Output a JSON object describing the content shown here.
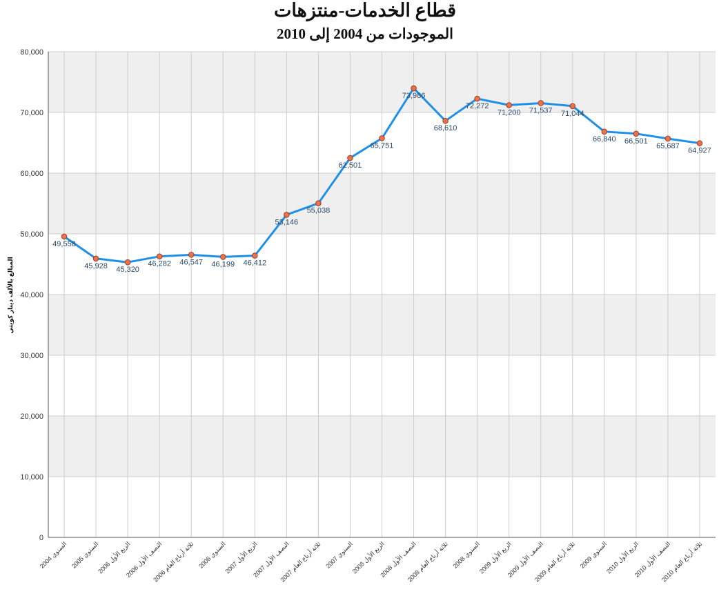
{
  "chart_data": {
    "type": "line",
    "title": "قطاع الخدمات-منتزهات",
    "subtitle": "الموجودات من 2004 إلى 2010",
    "ylabel": "المبالغ بالألف دينار كويتي",
    "xlabel": "",
    "ylim": [
      0,
      80000
    ],
    "yticks": [
      "0",
      "10,000",
      "20,000",
      "30,000",
      "40,000",
      "50,000",
      "60,000",
      "70,000",
      "80,000"
    ],
    "grid": true,
    "legend": "none",
    "colors": {
      "line": "#1e90e8",
      "marker_fill": "#e8734a",
      "marker_stroke": "#a0402a",
      "band": "#efefef",
      "grid": "#cccccc"
    },
    "categories": [
      "السنوي 2004",
      "السنوي 2005",
      "الربع الأول 2006",
      "النصف الأول 2006",
      "ثلاثة أرباع العام 2006",
      "السنوي 2006",
      "الربع الأول 2007",
      "النصف الأول 2007",
      "ثلاثة أرباع العام 2007",
      "السنوي 2007",
      "الربع الأول 2008",
      "النصف الأول 2008",
      "ثلاثة أرباع العام 2008",
      "السنوي 2008",
      "الربع الأول 2009",
      "النصف الأول 2009",
      "ثلاثة أرباع العام 2009",
      "السنوي 2009",
      "الربع الأول 2010",
      "النصف الأول 2010",
      "ثلاثة أرباع العام 2010"
    ],
    "values": [
      49558,
      45928,
      45320,
      46282,
      46547,
      46199,
      46412,
      53146,
      55038,
      62501,
      65751,
      73986,
      68610,
      72272,
      71200,
      71537,
      71044,
      66840,
      66501,
      65687,
      64927
    ],
    "value_labels": [
      "49,558",
      "45,928",
      "45,320",
      "46,282",
      "46,547",
      "46,199",
      "46,412",
      "53,146",
      "55,038",
      "62,501",
      "65,751",
      "73,986",
      "68,610",
      "72,272",
      "71,200",
      "71,537",
      "71,044",
      "66,840",
      "66,501",
      "65,687",
      "64,927"
    ]
  }
}
